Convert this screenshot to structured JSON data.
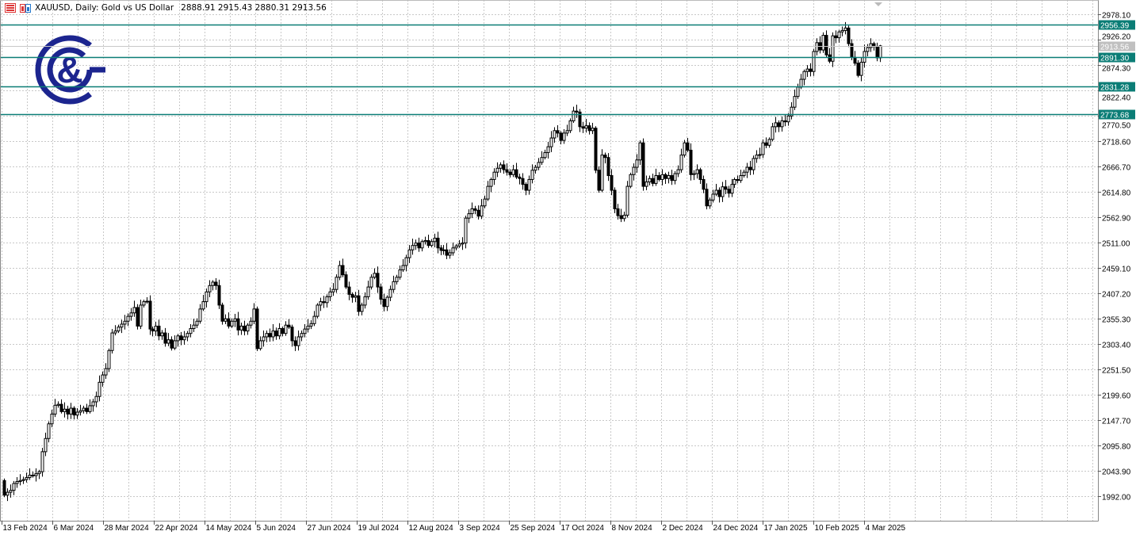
{
  "header": {
    "symbol_title": "XAUUSD, Daily:  Gold vs US Dollar",
    "ohlc": "2888.91 2915.43 2880.31 2913.56",
    "icons": [
      "chart-list-icon",
      "chart-template-icon"
    ]
  },
  "colors": {
    "level_line": "#0b7d76",
    "current_price_label": "#c0c0c0",
    "logo": "#1c258f",
    "grid": "#c8c8c8",
    "bull_body": "#ffffff",
    "bear_body": "#000000"
  },
  "chart_data": {
    "type": "candlestick",
    "symbol": "XAUUSD",
    "timeframe": "Daily",
    "last_candle": {
      "open": 2888.91,
      "high": 2915.43,
      "low": 2880.31,
      "close": 2913.56
    },
    "ylim": [
      1992.0,
      2978.1
    ],
    "y_ticks": [
      "2978.10",
      "2926.20",
      "2874.30",
      "2822.40",
      "2770.50",
      "2718.60",
      "2666.70",
      "2614.80",
      "2562.90",
      "2511.00",
      "2459.10",
      "2407.20",
      "2355.30",
      "2303.40",
      "2251.50",
      "2199.60",
      "2147.70",
      "2095.80",
      "2043.90",
      "1992.00"
    ],
    "x_ticks": [
      "13 Feb 2024",
      "6 Mar 2024",
      "28 Mar 2024",
      "22 Apr 2024",
      "14 May 2024",
      "5 Jun 2024",
      "27 Jun 2024",
      "19 Jul 2024",
      "12 Aug 2024",
      "3 Sep 2024",
      "25 Sep 2024",
      "17 Oct 2024",
      "8 Nov 2024",
      "2 Dec 2024",
      "24 Dec 2024",
      "17 Jan 2025",
      "10 Feb 2025",
      "4 Mar 2025"
    ],
    "horizontal_levels": [
      "2956.39",
      "2891.30",
      "2831.28",
      "2773.68"
    ],
    "current_price": "2913.56",
    "grid": true,
    "first_open": 2024,
    "closes": [
      1994,
      2000,
      2004,
      2018,
      2022,
      2024,
      2026,
      2030,
      2035,
      2034,
      2038,
      2042,
      2083,
      2110,
      2140,
      2160,
      2178,
      2180,
      2165,
      2170,
      2160,
      2172,
      2158,
      2164,
      2167,
      2172,
      2165,
      2177,
      2185,
      2196,
      2225,
      2240,
      2253,
      2290,
      2326,
      2330,
      2338,
      2344,
      2350,
      2360,
      2367,
      2378,
      2340,
      2383,
      2390,
      2391,
      2334,
      2330,
      2340,
      2320,
      2326,
      2305,
      2312,
      2295,
      2310,
      2320,
      2312,
      2318,
      2325,
      2335,
      2342,
      2350,
      2375,
      2390,
      2410,
      2423,
      2430,
      2423,
      2383,
      2350,
      2355,
      2340,
      2350,
      2355,
      2332,
      2340,
      2330,
      2342,
      2350,
      2375,
      2294,
      2310,
      2318,
      2325,
      2318,
      2330,
      2320,
      2335,
      2325,
      2342,
      2338,
      2310,
      2300,
      2318,
      2325,
      2334,
      2340,
      2345,
      2360,
      2383,
      2390,
      2388,
      2400,
      2410,
      2415,
      2440,
      2464,
      2445,
      2420,
      2405,
      2399,
      2402,
      2370,
      2383,
      2400,
      2420,
      2440,
      2448,
      2420,
      2395,
      2380,
      2399,
      2415,
      2431,
      2440,
      2455,
      2464,
      2480,
      2496,
      2505,
      2510,
      2500,
      2513,
      2515,
      2505,
      2513,
      2520,
      2500,
      2495,
      2496,
      2485,
      2490,
      2500,
      2504,
      2508,
      2510,
      2561,
      2570,
      2580,
      2577,
      2565,
      2586,
      2600,
      2626,
      2640,
      2655,
      2663,
      2670,
      2660,
      2655,
      2650,
      2660,
      2645,
      2642,
      2630,
      2618,
      2640,
      2659,
      2665,
      2675,
      2685,
      2695,
      2707,
      2725,
      2740,
      2735,
      2720,
      2735,
      2740,
      2760,
      2780,
      2778,
      2748,
      2745,
      2750,
      2740,
      2745,
      2659,
      2618,
      2690,
      2685,
      2648,
      2618,
      2580,
      2566,
      2560,
      2567,
      2626,
      2650,
      2665,
      2680,
      2715,
      2626,
      2635,
      2642,
      2632,
      2648,
      2640,
      2650,
      2642,
      2648,
      2638,
      2652,
      2660,
      2690,
      2715,
      2700,
      2650,
      2652,
      2660,
      2640,
      2620,
      2586,
      2598,
      2610,
      2618,
      2605,
      2625,
      2620,
      2612,
      2630,
      2640,
      2638,
      2648,
      2655,
      2665,
      2660,
      2683,
      2690,
      2691,
      2715,
      2710,
      2722,
      2748,
      2756,
      2748,
      2760,
      2758,
      2770,
      2788,
      2810,
      2829,
      2845,
      2861,
      2866,
      2861,
      2902,
      2920,
      2905,
      2935,
      2895,
      2882,
      2934,
      2930,
      2942,
      2945,
      2950,
      2918,
      2890,
      2878,
      2853,
      2880,
      2902,
      2910,
      2918,
      2912,
      2888.91,
      2913.56
    ]
  }
}
